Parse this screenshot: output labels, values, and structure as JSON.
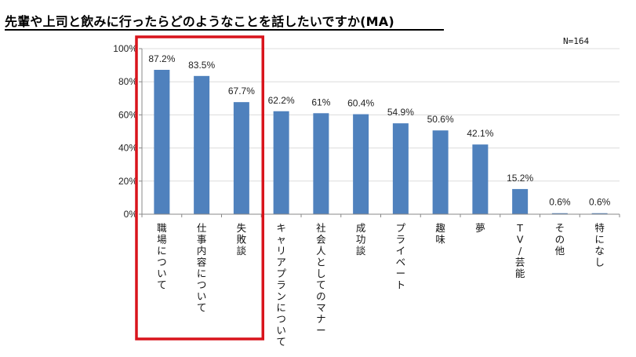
{
  "chart_data": {
    "type": "bar",
    "title": "先輩や上司と飲みに行ったらどのようなことを話したいですか(MA)",
    "note": "N=164",
    "categories": [
      "職場について",
      "仕事内容について",
      "失敗談",
      "キャリアプランについて",
      "社会人としてのマナー",
      "成功談",
      "プライベート",
      "趣味",
      "夢",
      "TV/芸能",
      "その他",
      "特になし"
    ],
    "values": [
      87.2,
      83.5,
      67.7,
      62.2,
      61,
      60.4,
      54.9,
      50.6,
      42.1,
      15.2,
      0.6,
      0.6
    ],
    "value_labels": [
      "87.2%",
      "83.5%",
      "67.7%",
      "62.2%",
      "61%",
      "60.4%",
      "54.9%",
      "50.6%",
      "42.1%",
      "15.2%",
      "0.6%",
      "0.6%"
    ],
    "yticks": [
      "0%",
      "20%",
      "40%",
      "60%",
      "80%",
      "100%"
    ],
    "ylim": [
      0,
      100
    ],
    "highlight": {
      "from_index": 0,
      "to_index": 2,
      "color": "#d9141c"
    },
    "bar_color": "#4f81bd",
    "xlabel": "",
    "ylabel": ""
  }
}
